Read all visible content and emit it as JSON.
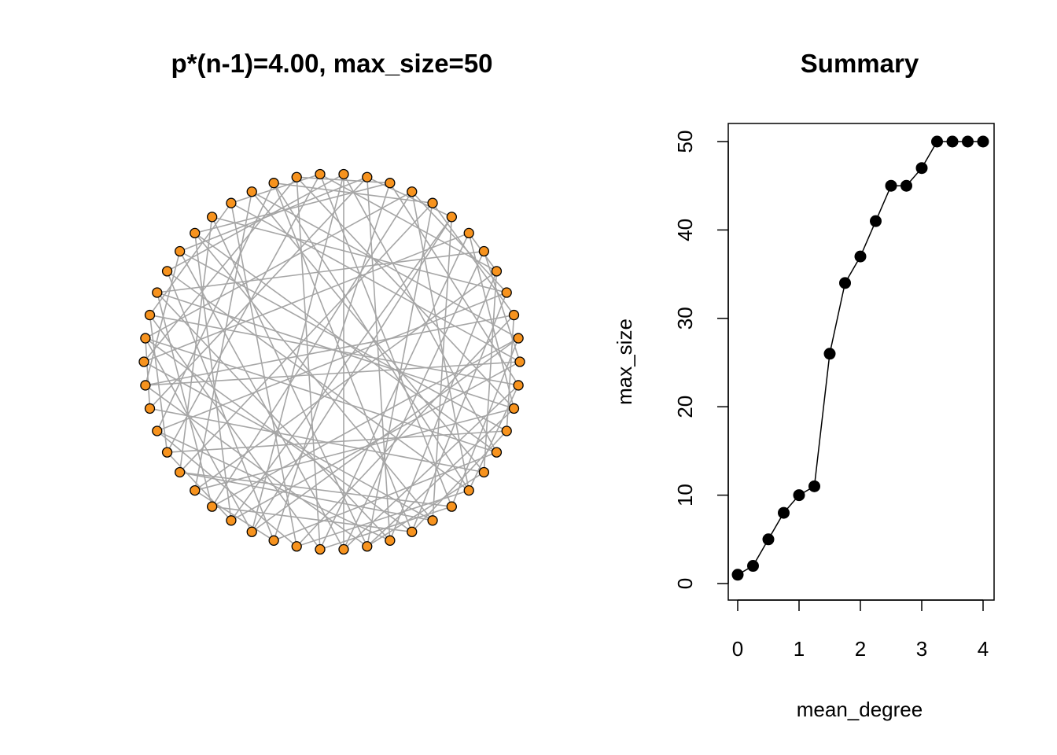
{
  "chart_data": [
    {
      "type": "network",
      "title": "p*(n-1)=4.00, max_size=50",
      "node_count": 50,
      "layout": "circle",
      "colors": {
        "node_fill": "#F7931E",
        "node_stroke": "#000000",
        "edge": "#A6A6A6"
      },
      "edges": [
        [
          0,
          17
        ],
        [
          0,
          33
        ],
        [
          0,
          45
        ],
        [
          1,
          12
        ],
        [
          1,
          27
        ],
        [
          1,
          40
        ],
        [
          2,
          19
        ],
        [
          2,
          36
        ],
        [
          2,
          44
        ],
        [
          3,
          21
        ],
        [
          3,
          30
        ],
        [
          3,
          48
        ],
        [
          4,
          15
        ],
        [
          4,
          26
        ],
        [
          4,
          38
        ],
        [
          5,
          23
        ],
        [
          5,
          34
        ],
        [
          5,
          46
        ],
        [
          6,
          14
        ],
        [
          6,
          29
        ],
        [
          6,
          41
        ],
        [
          7,
          20
        ],
        [
          7,
          37
        ],
        [
          7,
          49
        ],
        [
          8,
          25
        ],
        [
          8,
          31
        ],
        [
          8,
          43
        ],
        [
          9,
          18
        ],
        [
          9,
          35
        ],
        [
          9,
          47
        ],
        [
          10,
          22
        ],
        [
          10,
          28
        ],
        [
          10,
          39
        ],
        [
          11,
          24
        ],
        [
          11,
          32
        ],
        [
          11,
          42
        ],
        [
          12,
          30
        ],
        [
          12,
          45
        ],
        [
          13,
          27
        ],
        [
          13,
          36
        ],
        [
          13,
          44
        ],
        [
          14,
          33
        ],
        [
          14,
          48
        ],
        [
          15,
          29
        ],
        [
          15,
          40
        ],
        [
          16,
          26
        ],
        [
          16,
          38
        ],
        [
          16,
          49
        ],
        [
          17,
          31
        ],
        [
          17,
          43
        ],
        [
          18,
          28
        ],
        [
          18,
          41
        ],
        [
          19,
          34
        ],
        [
          19,
          46
        ],
        [
          20,
          32
        ],
        [
          20,
          42
        ],
        [
          21,
          37
        ],
        [
          22,
          35
        ],
        [
          22,
          47
        ],
        [
          23,
          39
        ],
        [
          24,
          30
        ],
        [
          24,
          48
        ],
        [
          25,
          36
        ],
        [
          25,
          44
        ],
        [
          26,
          41
        ],
        [
          27,
          33
        ],
        [
          28,
          45
        ],
        [
          29,
          38
        ],
        [
          31,
          40
        ],
        [
          32,
          47
        ],
        [
          34,
          49
        ],
        [
          35,
          42
        ],
        [
          37,
          46
        ],
        [
          39,
          43
        ],
        [
          0,
          24
        ],
        [
          2,
          28
        ],
        [
          4,
          31
        ],
        [
          6,
          35
        ],
        [
          8,
          20
        ],
        [
          10,
          46
        ],
        [
          12,
          38
        ],
        [
          14,
          22
        ],
        [
          16,
          43
        ],
        [
          18,
          49
        ],
        [
          1,
          6
        ],
        [
          3,
          9
        ],
        [
          5,
          11
        ],
        [
          7,
          13
        ],
        [
          21,
          27
        ],
        [
          23,
          26
        ],
        [
          36,
          40
        ],
        [
          41,
          47
        ],
        [
          42,
          48
        ],
        [
          44,
          46
        ],
        [
          15,
          19
        ],
        [
          17,
          21
        ],
        [
          30,
          39
        ],
        [
          33,
          37
        ],
        [
          2,
          11
        ],
        [
          9,
          26
        ]
      ]
    },
    {
      "type": "line",
      "title": "Summary",
      "xlabel": "mean_degree",
      "ylabel": "max_size",
      "x": [
        0,
        0.25,
        0.5,
        0.75,
        1,
        1.25,
        1.5,
        1.75,
        2,
        2.25,
        2.5,
        2.75,
        3,
        3.25,
        3.5,
        3.75,
        4
      ],
      "y": [
        1,
        2,
        5,
        8,
        10,
        11,
        26,
        34,
        37,
        41,
        45,
        45,
        47,
        50,
        50,
        50,
        50
      ],
      "xticks": [
        "0",
        "1",
        "2",
        "3",
        "4"
      ],
      "yticks": [
        "0",
        "10",
        "20",
        "30",
        "40",
        "50"
      ],
      "xlim": [
        0,
        4
      ],
      "ylim": [
        0,
        50
      ],
      "markers": "filled-circle",
      "grid": false
    }
  ]
}
